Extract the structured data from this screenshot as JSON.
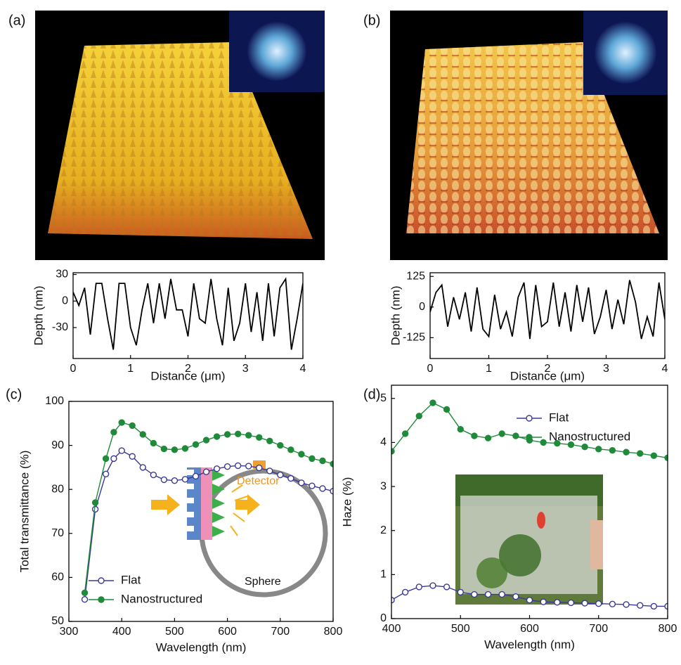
{
  "chart_data": [
    {
      "type": "line",
      "label": "(a)",
      "xlabel": "Distance (μm)",
      "ylabel": "Depth (nm)",
      "color": "#000000",
      "x": [
        0,
        0.1,
        0.2,
        0.3,
        0.4,
        0.5,
        0.6,
        0.7,
        0.8,
        0.9,
        1,
        1.1,
        1.2,
        1.3,
        1.4,
        1.5,
        1.6,
        1.7,
        1.8,
        1.9,
        2,
        2.1,
        2.2,
        2.3,
        2.4,
        2.5,
        2.6,
        2.7,
        2.8,
        2.9,
        3,
        3.1,
        3.2,
        3.3,
        3.4,
        3.5,
        3.6,
        3.7,
        3.8,
        3.9,
        4
      ],
      "values": [
        10,
        -5,
        15,
        -38,
        20,
        20,
        -20,
        -55,
        20,
        20,
        -30,
        -50,
        -10,
        20,
        -25,
        20,
        -20,
        25,
        -10,
        -10,
        -40,
        20,
        -20,
        -25,
        25,
        -20,
        -50,
        15,
        -45,
        -25,
        20,
        -35,
        10,
        -45,
        20,
        -40,
        15,
        25,
        -55,
        -20,
        20
      ],
      "xlim": [
        0,
        4
      ],
      "xticks": [
        0,
        1,
        2,
        3,
        4
      ],
      "ylim": [
        -65,
        32
      ],
      "yticks": [
        -30,
        0,
        30
      ]
    },
    {
      "type": "line",
      "label": "(b)",
      "xlabel": "Distance (μm)",
      "ylabel": "Depth (nm)",
      "color": "#000000",
      "x": [
        0,
        0.1,
        0.2,
        0.3,
        0.4,
        0.5,
        0.6,
        0.7,
        0.8,
        0.9,
        1,
        1.1,
        1.2,
        1.3,
        1.4,
        1.5,
        1.6,
        1.7,
        1.8,
        1.9,
        2,
        2.1,
        2.2,
        2.3,
        2.4,
        2.5,
        2.6,
        2.7,
        2.8,
        2.9,
        3,
        3.1,
        3.2,
        3.3,
        3.4,
        3.5,
        3.6,
        3.7,
        3.8,
        3.9,
        4
      ],
      "values": [
        -20,
        60,
        90,
        -80,
        40,
        -50,
        60,
        -100,
        80,
        -90,
        -120,
        50,
        -90,
        -20,
        -120,
        40,
        100,
        -130,
        90,
        -80,
        -60,
        100,
        -80,
        60,
        -100,
        90,
        -60,
        80,
        -110,
        -40,
        70,
        -90,
        30,
        -70,
        110,
        20,
        -130,
        -40,
        -120,
        100,
        -50
      ],
      "xlim": [
        0,
        4
      ],
      "xticks": [
        0,
        1,
        2,
        3,
        4
      ],
      "ylim": [
        -210,
        140
      ],
      "yticks": [
        -125,
        0,
        125
      ]
    },
    {
      "type": "line",
      "label": "(c)",
      "xlabel": "Wavelength (nm)",
      "ylabel": "Total transmittance (%)",
      "legend": "lower left",
      "annotations": [
        "Detector",
        "Sphere"
      ],
      "x": [
        330,
        350,
        370,
        385,
        400,
        420,
        440,
        460,
        480,
        500,
        520,
        540,
        560,
        580,
        600,
        620,
        640,
        660,
        680,
        700,
        720,
        740,
        760,
        780,
        800
      ],
      "series": [
        {
          "name": "Flat",
          "color": "#3a3a96",
          "filled": false,
          "values": [
            55,
            75.5,
            83.5,
            87,
            88.8,
            87.5,
            85,
            83.3,
            82.2,
            82,
            82.3,
            83,
            84,
            84.7,
            85.2,
            85.4,
            85.3,
            84.9,
            84.2,
            83.3,
            82.5,
            81.5,
            80.8,
            80.2,
            79.6
          ]
        },
        {
          "name": "Nanostructured",
          "color": "#1f8a3a",
          "filled": true,
          "values": [
            56.5,
            77,
            87,
            93,
            95.2,
            94.5,
            92.5,
            90.5,
            89.2,
            89,
            89.3,
            90.2,
            91.2,
            92,
            92.5,
            92.6,
            92.3,
            91.8,
            91,
            90,
            89,
            88,
            87,
            86.5,
            85.8
          ]
        }
      ],
      "xlim": [
        300,
        800
      ],
      "xticks": [
        300,
        400,
        500,
        600,
        700,
        800
      ],
      "ylim": [
        50,
        100
      ],
      "yticks": [
        50,
        60,
        70,
        80,
        90,
        100
      ]
    },
    {
      "type": "line",
      "label": "(d)",
      "xlabel": "Wavelength (nm)",
      "ylabel": "Haze (%)",
      "legend": "upper right",
      "x": [
        400,
        420,
        440,
        460,
        480,
        500,
        520,
        540,
        560,
        580,
        600,
        620,
        640,
        660,
        680,
        700,
        720,
        740,
        760,
        780,
        800
      ],
      "series": [
        {
          "name": "Flat",
          "color": "#3a3a96",
          "filled": false,
          "values": [
            0.42,
            0.6,
            0.72,
            0.75,
            0.72,
            0.6,
            0.55,
            0.55,
            0.55,
            0.5,
            0.42,
            0.38,
            0.37,
            0.36,
            0.35,
            0.34,
            0.33,
            0.32,
            0.3,
            0.28,
            0.28
          ]
        },
        {
          "name": "Nanostructured",
          "color": "#1f8a3a",
          "filled": true,
          "values": [
            3.8,
            4.2,
            4.6,
            4.9,
            4.75,
            4.3,
            4.15,
            4.1,
            4.2,
            4.15,
            4.05,
            4,
            3.98,
            3.95,
            3.9,
            3.85,
            3.82,
            3.78,
            3.75,
            3.7,
            3.65
          ]
        }
      ],
      "xlim": [
        400,
        800
      ],
      "xticks": [
        400,
        500,
        600,
        700,
        800
      ],
      "ylim": [
        0,
        5.3
      ],
      "yticks": [
        0,
        1,
        2,
        3,
        4,
        5
      ]
    }
  ]
}
